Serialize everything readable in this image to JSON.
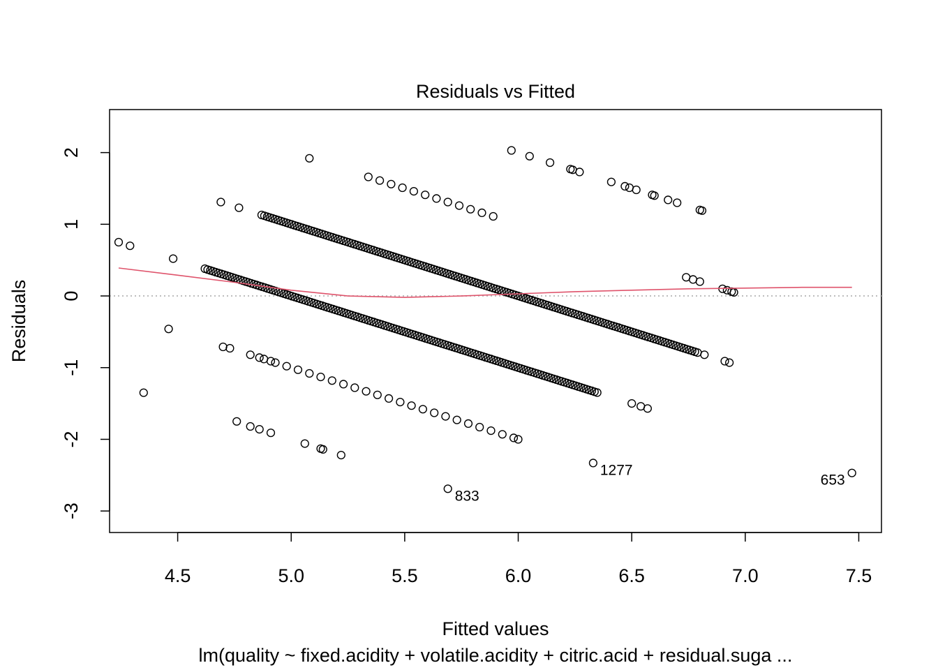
{
  "chart_data": {
    "type": "scatter",
    "title": "Residuals vs Fitted",
    "xlabel": "Fitted values",
    "ylabel": "Residuals",
    "caption": "lm(quality ~ fixed.acidity + volatile.acidity + citric.acid + residual.suga ...",
    "xlim": [
      4.2,
      7.6
    ],
    "ylim": [
      -3.3,
      2.6
    ],
    "x_ticks": [
      4.5,
      5.0,
      5.5,
      6.0,
      6.5,
      7.0,
      7.5
    ],
    "x_tick_labels": [
      "4.5",
      "5.0",
      "5.5",
      "6.0",
      "6.5",
      "7.0",
      "7.5"
    ],
    "y_ticks": [
      -3,
      -2,
      -1,
      0,
      1,
      2
    ],
    "y_tick_labels": [
      "-3",
      "-2",
      "-1",
      "0",
      "1",
      "2"
    ],
    "reference_line": {
      "y": 0,
      "style": "dotted",
      "color": "#bdbdbd"
    },
    "smooth_color": "#df536b",
    "smooth": [
      [
        4.24,
        0.39
      ],
      [
        4.5,
        0.29
      ],
      [
        4.75,
        0.19
      ],
      [
        5.0,
        0.08
      ],
      [
        5.25,
        0.0
      ],
      [
        5.5,
        -0.02
      ],
      [
        5.75,
        0.0
      ],
      [
        6.0,
        0.03
      ],
      [
        6.25,
        0.06
      ],
      [
        6.5,
        0.08
      ],
      [
        6.75,
        0.1
      ],
      [
        7.0,
        0.11
      ],
      [
        7.25,
        0.12
      ],
      [
        7.47,
        0.12
      ]
    ],
    "bands": [
      {
        "x_from": 5.34,
        "x_to": 5.89,
        "y_intercept": 7,
        "step": 0.05
      },
      {
        "x_from": 4.87,
        "x_to": 6.8,
        "y_intercept": 6,
        "step": 0.012
      },
      {
        "x_from": 4.62,
        "x_to": 6.35,
        "y_intercept": 5,
        "step": 0.012
      },
      {
        "x_from": 4.88,
        "x_to": 5.93,
        "y_intercept": 4,
        "step": 0.05
      }
    ],
    "points": [
      [
        5.97,
        2.03
      ],
      [
        6.05,
        1.95
      ],
      [
        6.14,
        1.86
      ],
      [
        6.23,
        1.77
      ],
      [
        6.27,
        1.73
      ],
      [
        6.24,
        1.76
      ],
      [
        6.41,
        1.59
      ],
      [
        6.47,
        1.53
      ],
      [
        6.49,
        1.51
      ],
      [
        6.52,
        1.48
      ],
      [
        6.59,
        1.41
      ],
      [
        6.6,
        1.4
      ],
      [
        6.66,
        1.34
      ],
      [
        6.7,
        1.3
      ],
      [
        6.8,
        1.2
      ],
      [
        6.81,
        1.19
      ],
      [
        6.74,
        0.26
      ],
      [
        6.77,
        0.23
      ],
      [
        6.8,
        0.2
      ],
      [
        6.9,
        0.1
      ],
      [
        6.92,
        0.08
      ],
      [
        6.94,
        0.06
      ],
      [
        6.95,
        0.05
      ],
      [
        6.82,
        -0.82
      ],
      [
        6.91,
        -0.91
      ],
      [
        6.93,
        -0.93
      ],
      [
        5.08,
        1.92
      ],
      [
        4.69,
        1.31
      ],
      [
        4.77,
        1.23
      ],
      [
        4.24,
        0.75
      ],
      [
        4.29,
        0.7
      ],
      [
        4.48,
        0.52
      ],
      [
        4.46,
        -0.46
      ],
      [
        4.35,
        -1.35
      ],
      [
        4.7,
        -0.71
      ],
      [
        4.73,
        -0.73
      ],
      [
        4.82,
        -0.82
      ],
      [
        4.86,
        -0.86
      ],
      [
        4.91,
        -0.91
      ],
      [
        4.76,
        -1.75
      ],
      [
        4.82,
        -1.82
      ],
      [
        4.86,
        -1.86
      ],
      [
        4.91,
        -1.91
      ],
      [
        5.06,
        -2.06
      ],
      [
        5.13,
        -2.13
      ],
      [
        5.14,
        -2.14
      ],
      [
        5.22,
        -2.22
      ],
      [
        6.5,
        -1.5
      ],
      [
        6.54,
        -1.54
      ],
      [
        6.57,
        -1.57
      ],
      [
        5.98,
        -1.98
      ],
      [
        6.0,
        -2.0
      ]
    ],
    "labeled_points": [
      {
        "x": 5.69,
        "y": -2.69,
        "label": "833"
      },
      {
        "x": 6.33,
        "y": -2.33,
        "label": "1277"
      },
      {
        "x": 7.47,
        "y": -2.47,
        "label": "653"
      }
    ]
  }
}
